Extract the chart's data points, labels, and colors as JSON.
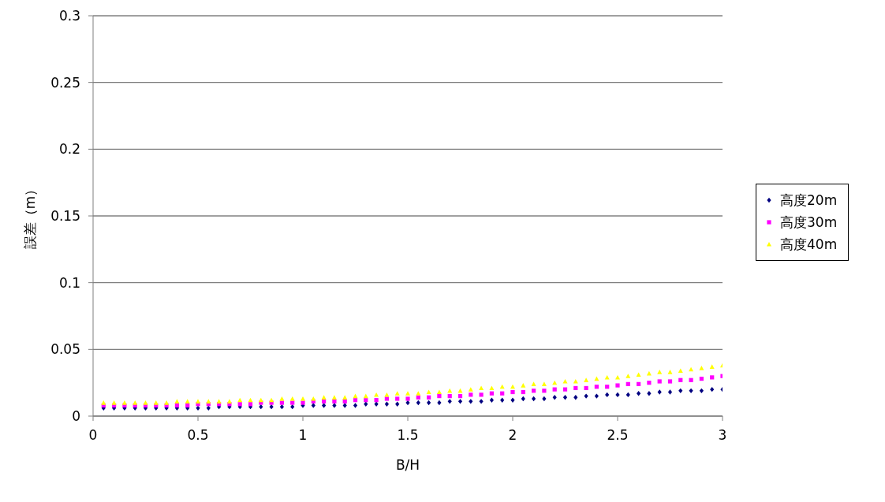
{
  "chart_data": {
    "type": "scatter",
    "xlabel": "B/H",
    "ylabel": "誤差（m）",
    "x": [
      0.05,
      0.1,
      0.15,
      0.2,
      0.25,
      0.3,
      0.35,
      0.4,
      0.45,
      0.5,
      0.55,
      0.6,
      0.65,
      0.7,
      0.75,
      0.8,
      0.85,
      0.9,
      0.95,
      1,
      1.05,
      1.1,
      1.15,
      1.2,
      1.25,
      1.3,
      1.35,
      1.4,
      1.45,
      1.5,
      1.55,
      1.6,
      1.65,
      1.7,
      1.75,
      1.8,
      1.85,
      1.9,
      1.95,
      2,
      2.05,
      2.1,
      2.15,
      2.2,
      2.25,
      2.3,
      2.35,
      2.4,
      2.45,
      2.5,
      2.55,
      2.6,
      2.65,
      2.7,
      2.75,
      2.8,
      2.85,
      2.9,
      2.95,
      3
    ],
    "series": [
      {
        "name": "高度20m",
        "color": "#000080",
        "marker": "diamond",
        "values": [
          0.006,
          0.006,
          0.006,
          0.006,
          0.006,
          0.006,
          0.006,
          0.006,
          0.006,
          0.006,
          0.006,
          0.007,
          0.007,
          0.007,
          0.007,
          0.007,
          0.007,
          0.007,
          0.007,
          0.008,
          0.008,
          0.008,
          0.008,
          0.008,
          0.008,
          0.009,
          0.009,
          0.009,
          0.009,
          0.01,
          0.01,
          0.01,
          0.01,
          0.011,
          0.011,
          0.011,
          0.011,
          0.012,
          0.012,
          0.012,
          0.013,
          0.013,
          0.013,
          0.014,
          0.014,
          0.014,
          0.015,
          0.015,
          0.016,
          0.016,
          0.016,
          0.017,
          0.017,
          0.018,
          0.018,
          0.019,
          0.019,
          0.019,
          0.02,
          0.02
        ]
      },
      {
        "name": "高度30m",
        "color": "#ff00ff",
        "marker": "square",
        "values": [
          0.008,
          0.008,
          0.008,
          0.008,
          0.008,
          0.008,
          0.008,
          0.008,
          0.008,
          0.009,
          0.009,
          0.009,
          0.009,
          0.009,
          0.009,
          0.01,
          0.01,
          0.01,
          0.01,
          0.01,
          0.011,
          0.011,
          0.011,
          0.011,
          0.012,
          0.012,
          0.012,
          0.013,
          0.013,
          0.013,
          0.014,
          0.014,
          0.015,
          0.015,
          0.015,
          0.016,
          0.016,
          0.017,
          0.017,
          0.018,
          0.018,
          0.019,
          0.019,
          0.02,
          0.02,
          0.021,
          0.021,
          0.022,
          0.022,
          0.023,
          0.024,
          0.024,
          0.025,
          0.026,
          0.026,
          0.027,
          0.027,
          0.028,
          0.029,
          0.03
        ]
      },
      {
        "name": "高度40m",
        "color": "#ffff00",
        "marker": "triangle",
        "values": [
          0.01,
          0.01,
          0.01,
          0.01,
          0.01,
          0.01,
          0.01,
          0.011,
          0.011,
          0.011,
          0.011,
          0.011,
          0.011,
          0.012,
          0.012,
          0.012,
          0.012,
          0.013,
          0.013,
          0.013,
          0.013,
          0.014,
          0.014,
          0.014,
          0.015,
          0.015,
          0.016,
          0.016,
          0.017,
          0.017,
          0.017,
          0.018,
          0.018,
          0.019,
          0.019,
          0.02,
          0.021,
          0.021,
          0.022,
          0.022,
          0.023,
          0.024,
          0.024,
          0.025,
          0.026,
          0.026,
          0.027,
          0.028,
          0.029,
          0.029,
          0.03,
          0.031,
          0.032,
          0.033,
          0.033,
          0.034,
          0.035,
          0.036,
          0.037,
          0.038
        ]
      }
    ],
    "xlim": [
      0,
      3
    ],
    "xticks": [
      0,
      0.5,
      1,
      1.5,
      2,
      2.5,
      3
    ],
    "ylim": [
      0,
      0.3
    ],
    "yticks": [
      0,
      0.05,
      0.1,
      0.15,
      0.2,
      0.25,
      0.3
    ],
    "grid": "y",
    "legend": "right"
  }
}
